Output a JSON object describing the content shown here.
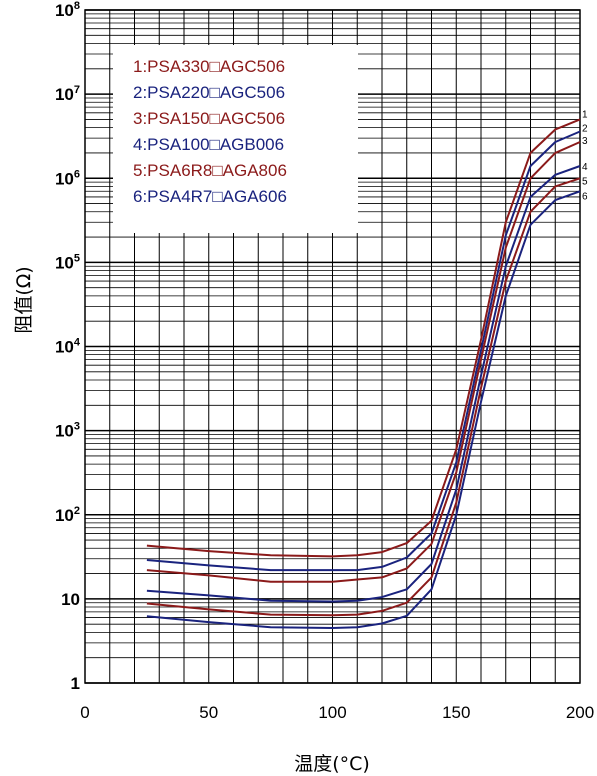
{
  "chart_data": {
    "type": "line",
    "xlabel": "温度(°C)",
    "ylabel": "阻值(Ω)",
    "xlim": [
      0,
      200
    ],
    "ylim": [
      1,
      100000000
    ],
    "yscale": "log",
    "grid": true,
    "legend_position": "top-left",
    "x_ticks": [
      "0",
      "50",
      "100",
      "150",
      "200"
    ],
    "y_ticks": [
      {
        "base": "1",
        "exp": ""
      },
      {
        "base": "10",
        "exp": ""
      },
      {
        "base": "10",
        "exp": "2"
      },
      {
        "base": "10",
        "exp": "3"
      },
      {
        "base": "10",
        "exp": "4"
      },
      {
        "base": "10",
        "exp": "5"
      },
      {
        "base": "10",
        "exp": "6"
      },
      {
        "base": "10",
        "exp": "7"
      },
      {
        "base": "10",
        "exp": "8"
      }
    ],
    "x": [
      25,
      50,
      75,
      100,
      110,
      120,
      130,
      140,
      150,
      160,
      170,
      180,
      190,
      200
    ],
    "series": [
      {
        "name": "1:PSA330□AGC506",
        "label": "1",
        "color": "#8b1a1a",
        "values": [
          43,
          37,
          33,
          32,
          33,
          36,
          46,
          85,
          600,
          12000,
          300000,
          2000000,
          3800000,
          5000000
        ]
      },
      {
        "name": "2:PSA220□AGC506",
        "label": "2",
        "color": "#1a237e",
        "values": [
          29,
          25,
          22,
          22,
          22,
          24,
          31,
          60,
          420,
          9000,
          210000,
          1400000,
          2700000,
          3600000
        ]
      },
      {
        "name": "3:PSA150□AGC506",
        "label": "3",
        "color": "#8b1a1a",
        "values": [
          22,
          19,
          16,
          16,
          17,
          18,
          23,
          45,
          320,
          7000,
          150000,
          1000000,
          2000000,
          2700000
        ]
      },
      {
        "name": "4:PSA100□AGB006",
        "label": "4",
        "color": "#1a237e",
        "values": [
          12.5,
          11,
          9.5,
          9.3,
          9.5,
          10.5,
          13,
          26,
          200,
          4500,
          90000,
          600000,
          1100000,
          1400000
        ]
      },
      {
        "name": "5:PSA6R8□AGA806",
        "label": "5",
        "color": "#8b1a1a",
        "values": [
          8.8,
          7.5,
          6.5,
          6.4,
          6.5,
          7.2,
          9,
          18,
          140,
          3200,
          60000,
          400000,
          800000,
          1000000
        ]
      },
      {
        "name": "6:PSA4R7□AGA606",
        "label": "6",
        "color": "#1a237e",
        "values": [
          6.2,
          5.3,
          4.6,
          4.5,
          4.6,
          5.1,
          6.3,
          13,
          100,
          2200,
          40000,
          280000,
          550000,
          700000
        ]
      }
    ]
  }
}
